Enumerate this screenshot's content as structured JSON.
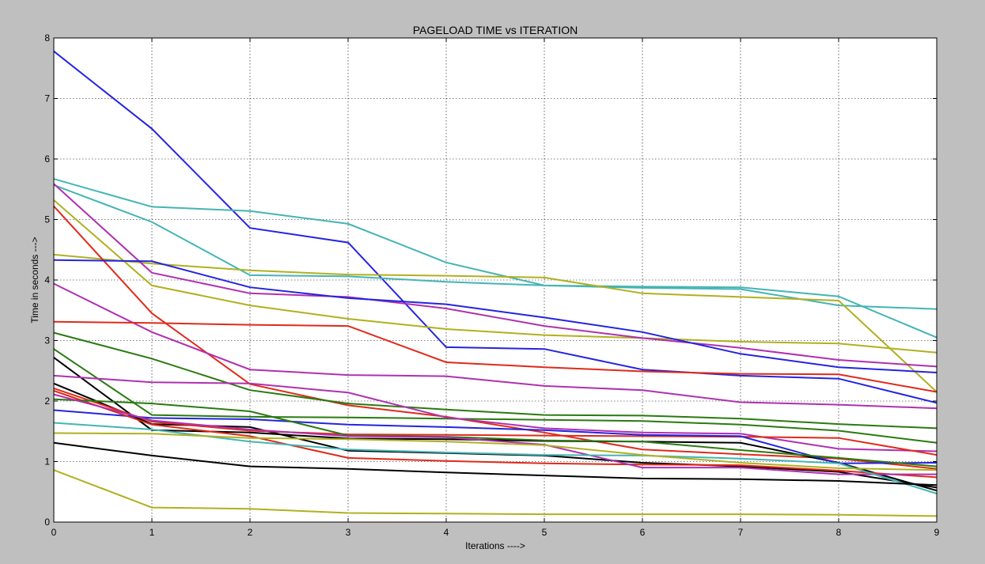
{
  "chart_data": {
    "type": "line",
    "title": "PAGELOAD TIME  vs  ITERATION",
    "xlabel": "Iterations ---->",
    "ylabel": "Time in seconds --->",
    "x": [
      0,
      1,
      2,
      3,
      4,
      5,
      6,
      7,
      8,
      9
    ],
    "xticks": [
      "0",
      "1",
      "2",
      "3",
      "4",
      "5",
      "6",
      "7",
      "8",
      "9"
    ],
    "yticks": [
      "0",
      "1",
      "2",
      "3",
      "4",
      "5",
      "6",
      "7",
      "8"
    ],
    "xlim": [
      0,
      9
    ],
    "ylim": [
      0,
      8
    ],
    "grid": true,
    "series": [
      {
        "color": "#2424e0",
        "values": [
          7.78,
          6.5,
          4.86,
          4.62,
          2.89,
          2.86,
          2.52,
          2.42,
          2.37,
          1.97
        ]
      },
      {
        "color": "#44b4b4",
        "values": [
          5.67,
          5.21,
          5.14,
          4.93,
          4.29,
          3.91,
          3.89,
          3.88,
          3.73,
          3.05
        ]
      },
      {
        "color": "#44b4b4",
        "values": [
          5.57,
          4.96,
          4.08,
          4.06,
          3.97,
          3.91,
          3.87,
          3.85,
          3.58,
          3.52
        ]
      },
      {
        "color": "#b0b020",
        "values": [
          5.32,
          3.91,
          3.58,
          3.36,
          3.19,
          3.09,
          3.04,
          2.98,
          2.95,
          2.8
        ]
      },
      {
        "color": "#b0b020",
        "values": [
          4.42,
          4.27,
          4.16,
          4.09,
          4.07,
          4.04,
          3.78,
          3.72,
          3.66,
          2.15
        ]
      },
      {
        "color": "#e02a1a",
        "values": [
          5.22,
          3.45,
          2.28,
          1.93,
          1.74,
          1.48,
          1.2,
          1.12,
          1.05,
          0.88
        ]
      },
      {
        "color": "#b030b0",
        "values": [
          5.59,
          4.12,
          3.78,
          3.72,
          3.53,
          3.24,
          3.04,
          2.88,
          2.68,
          2.57
        ]
      },
      {
        "color": "#2424e0",
        "values": [
          4.33,
          4.31,
          3.88,
          3.7,
          3.6,
          3.38,
          3.14,
          2.78,
          2.56,
          2.47
        ]
      },
      {
        "color": "#b030b0",
        "values": [
          3.94,
          3.14,
          2.52,
          2.43,
          2.41,
          2.25,
          2.18,
          1.98,
          1.94,
          1.88
        ]
      },
      {
        "color": "#e02a1a",
        "values": [
          3.31,
          3.29,
          3.26,
          3.24,
          2.64,
          2.56,
          2.49,
          2.45,
          2.44,
          2.15
        ]
      },
      {
        "color": "#2a7a10",
        "values": [
          3.13,
          2.7,
          2.18,
          1.96,
          1.86,
          1.77,
          1.76,
          1.71,
          1.62,
          1.55
        ]
      },
      {
        "color": "#2a7a10",
        "values": [
          2.86,
          1.77,
          1.74,
          1.73,
          1.71,
          1.69,
          1.67,
          1.61,
          1.51,
          1.31
        ]
      },
      {
        "color": "#000000",
        "values": [
          2.72,
          1.52,
          1.48,
          1.38,
          1.37,
          1.34,
          1.33,
          1.31,
          0.98,
          0.52
        ]
      },
      {
        "color": "#b030b0",
        "values": [
          2.42,
          2.31,
          2.29,
          2.14,
          1.73,
          1.55,
          1.48,
          1.46,
          1.21,
          1.17
        ]
      },
      {
        "color": "#000000",
        "values": [
          2.29,
          1.62,
          1.57,
          1.18,
          1.14,
          1.1,
          0.98,
          0.92,
          0.83,
          0.57
        ]
      },
      {
        "color": "#e02a1a",
        "values": [
          2.21,
          1.66,
          1.51,
          1.45,
          1.44,
          1.43,
          1.42,
          1.41,
          1.39,
          1.11
        ]
      },
      {
        "color": "#2424e0",
        "values": [
          1.85,
          1.72,
          1.7,
          1.61,
          1.57,
          1.52,
          1.44,
          1.42,
          0.97,
          0.98
        ]
      },
      {
        "color": "#e02a1a",
        "values": [
          2.17,
          1.61,
          1.42,
          1.06,
          1.01,
          0.97,
          0.95,
          0.94,
          0.85,
          0.74
        ]
      },
      {
        "color": "#2a7a10",
        "values": [
          2.03,
          1.96,
          1.83,
          1.43,
          1.41,
          1.35,
          1.33,
          1.19,
          1.06,
          0.92
        ]
      },
      {
        "color": "#b030b0",
        "values": [
          2.11,
          1.68,
          1.53,
          1.42,
          1.4,
          1.28,
          0.9,
          0.9,
          0.79,
          0.79
        ]
      },
      {
        "color": "#44b4b4",
        "values": [
          1.64,
          1.53,
          1.33,
          1.2,
          1.15,
          1.11,
          1.1,
          1.05,
          0.97,
          0.47
        ]
      },
      {
        "color": "#b0b020",
        "values": [
          1.47,
          1.46,
          1.39,
          1.37,
          1.33,
          1.27,
          1.11,
          0.98,
          0.89,
          0.86
        ]
      },
      {
        "color": "#000000",
        "values": [
          1.31,
          1.1,
          0.92,
          0.88,
          0.82,
          0.77,
          0.72,
          0.71,
          0.68,
          0.61
        ]
      },
      {
        "color": "#b0b020",
        "values": [
          0.86,
          0.24,
          0.22,
          0.15,
          0.14,
          0.13,
          0.13,
          0.13,
          0.12,
          0.1
        ]
      }
    ]
  }
}
